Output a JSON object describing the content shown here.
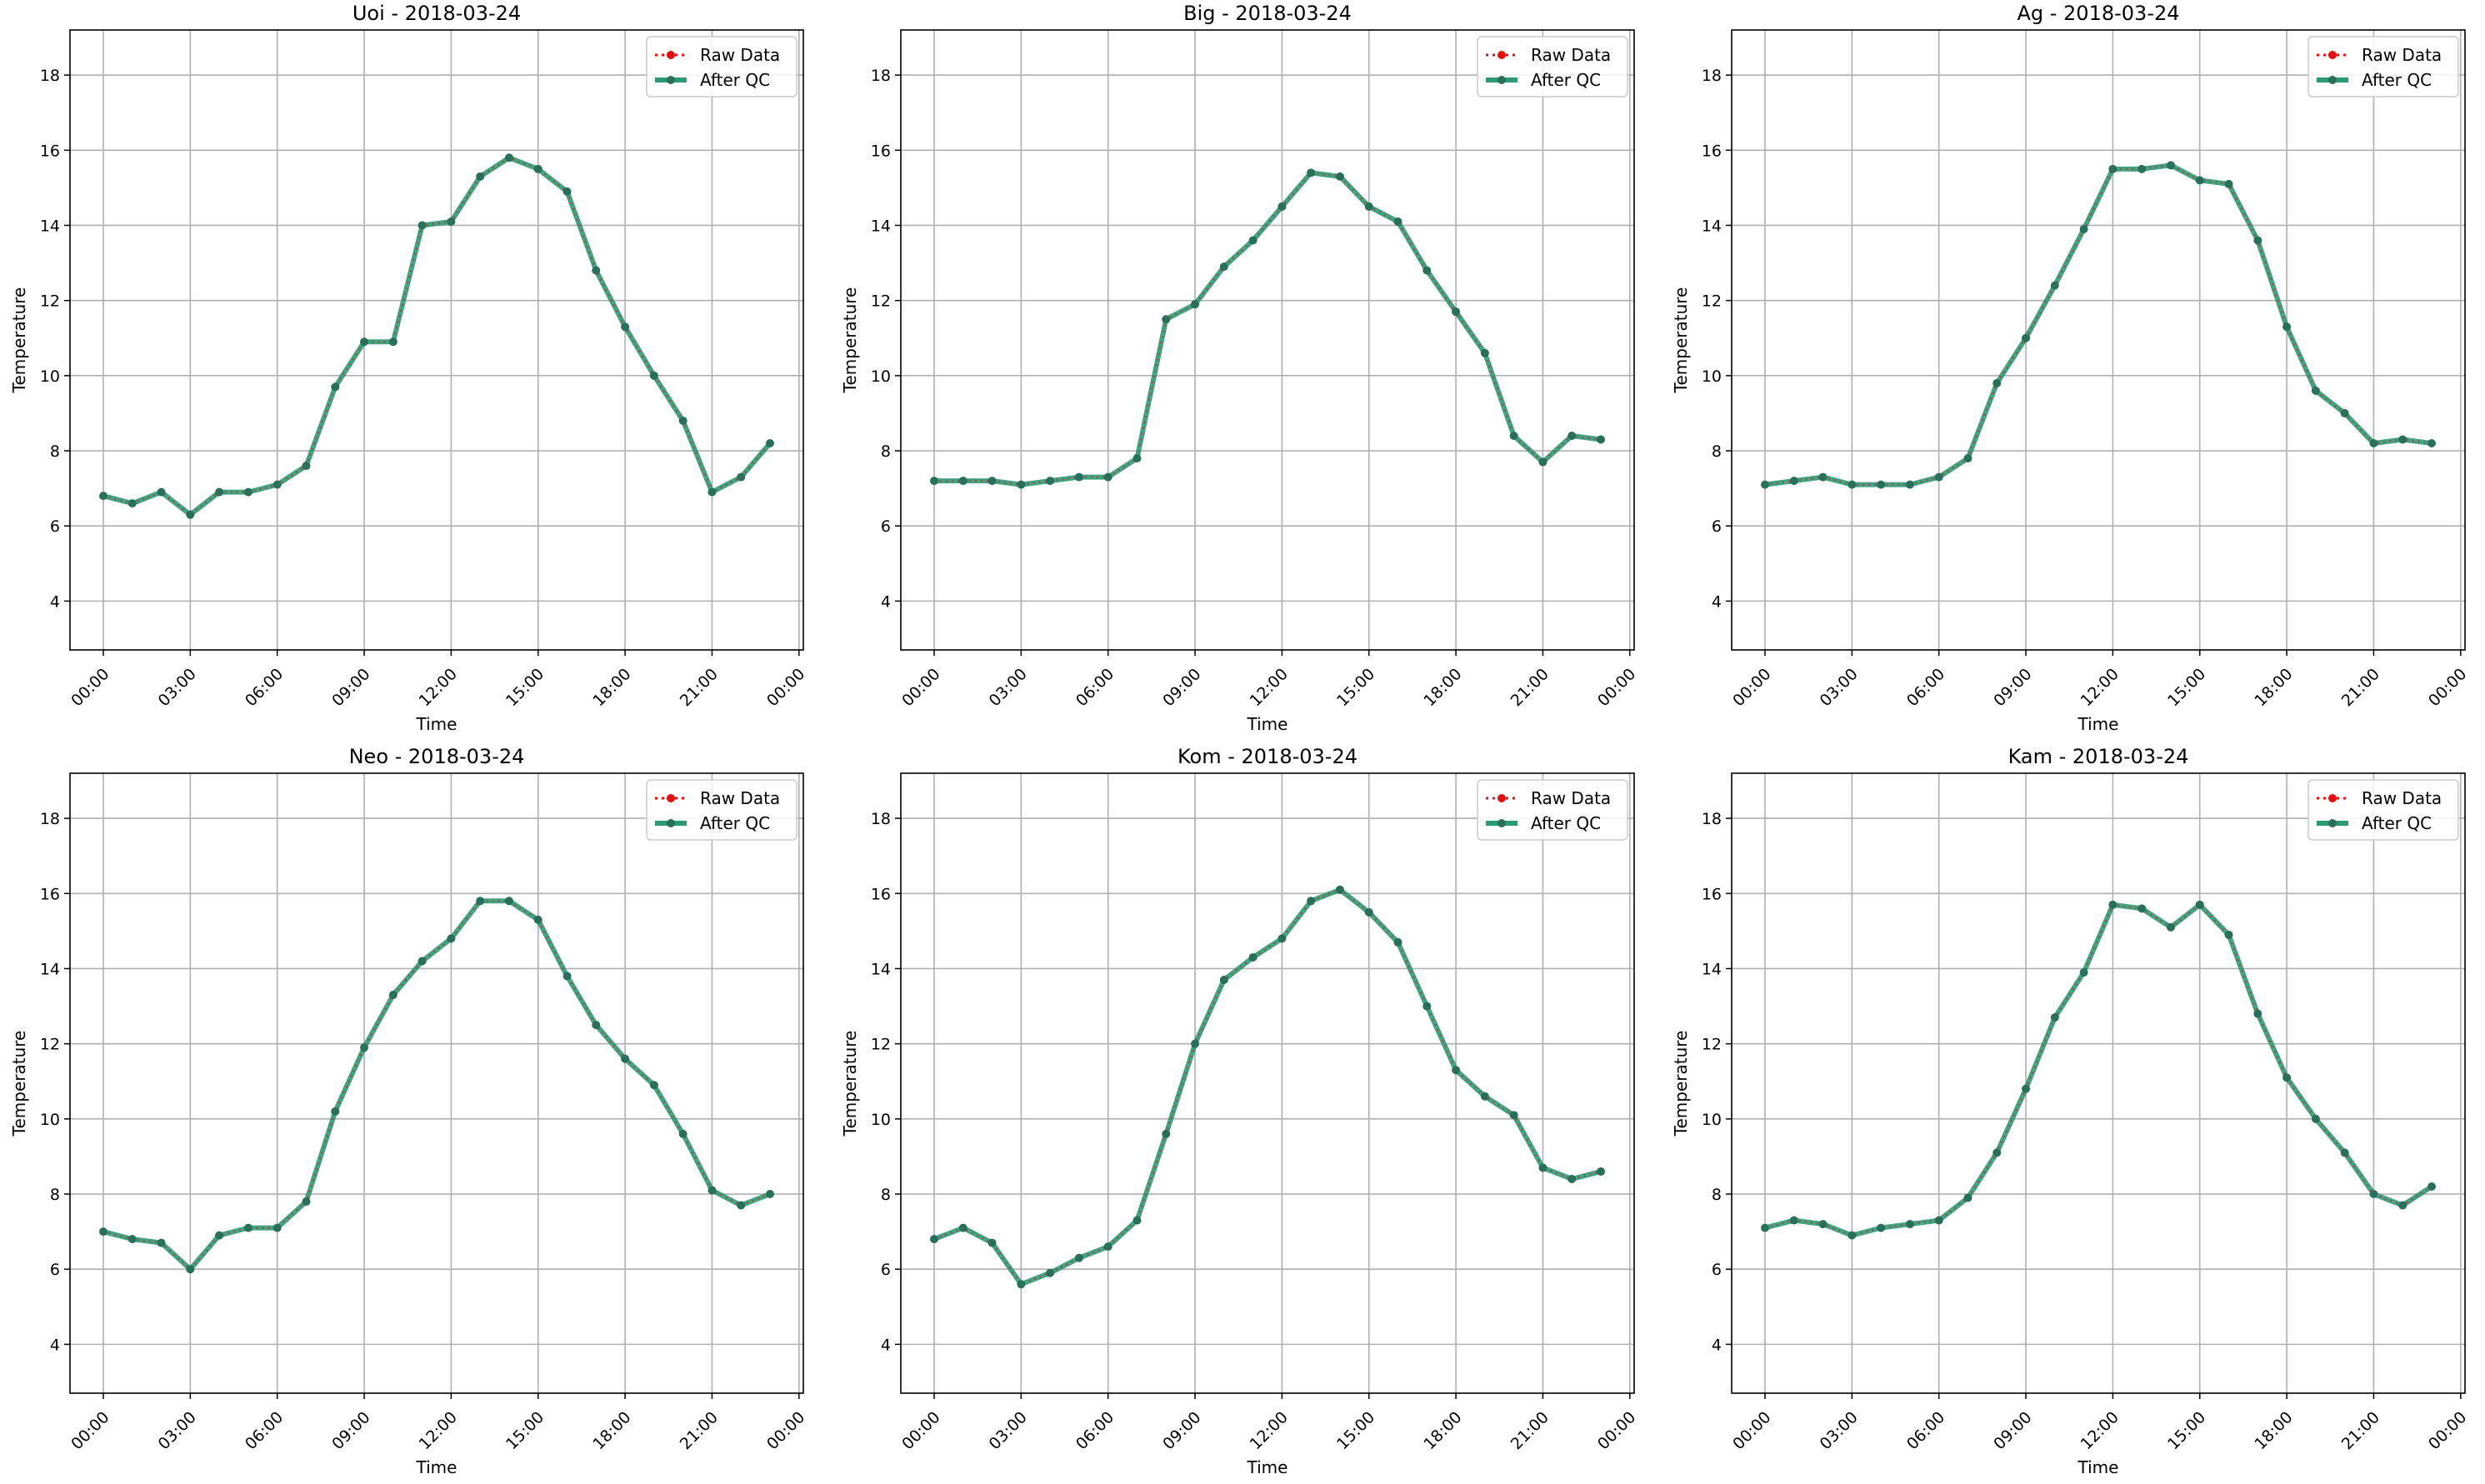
{
  "figure": {
    "colors": {
      "raw": "#e01010",
      "qc": "#2e9a74",
      "qc_marker": "#2a6f5a",
      "grid": "#b0b0b0",
      "axes": "#000000"
    }
  },
  "chart_data": [
    {
      "type": "line",
      "title": "Uoi - 2018-03-24",
      "xlabel": "Time",
      "ylabel": "Temperature",
      "x_ticks": [
        "00:00",
        "03:00",
        "06:00",
        "09:00",
        "12:00",
        "15:00",
        "18:00",
        "21:00",
        "00:00"
      ],
      "y_ticks": [
        4,
        6,
        8,
        10,
        12,
        14,
        16,
        18
      ],
      "xlim_hours": [
        -1.15,
        24.15
      ],
      "ylim": [
        2.7,
        19.2
      ],
      "grid": true,
      "legend": "top-right",
      "x_hours": [
        0,
        1,
        2,
        3,
        4,
        5,
        6,
        7,
        8,
        9,
        10,
        11,
        12,
        13,
        14,
        15,
        16,
        17,
        18,
        19,
        20,
        21,
        22,
        23
      ],
      "series": [
        {
          "name": "Raw Data",
          "values": [
            6.8,
            6.6,
            6.9,
            6.3,
            6.9,
            6.9,
            7.1,
            7.6,
            9.7,
            10.9,
            10.9,
            14.0,
            14.1,
            15.3,
            15.8,
            15.5,
            14.9,
            12.8,
            11.3,
            10.0,
            8.8,
            6.9,
            7.3,
            8.2
          ]
        },
        {
          "name": "After QC",
          "values": [
            6.8,
            6.6,
            6.9,
            6.3,
            6.9,
            6.9,
            7.1,
            7.6,
            9.7,
            10.9,
            10.9,
            14.0,
            14.1,
            15.3,
            15.8,
            15.5,
            14.9,
            12.8,
            11.3,
            10.0,
            8.8,
            6.9,
            7.3,
            8.2
          ]
        }
      ]
    },
    {
      "type": "line",
      "title": "Big - 2018-03-24",
      "xlabel": "Time",
      "ylabel": "Temperature",
      "x_ticks": [
        "00:00",
        "03:00",
        "06:00",
        "09:00",
        "12:00",
        "15:00",
        "18:00",
        "21:00",
        "00:00"
      ],
      "y_ticks": [
        4,
        6,
        8,
        10,
        12,
        14,
        16,
        18
      ],
      "xlim_hours": [
        -1.15,
        24.15
      ],
      "ylim": [
        2.7,
        19.2
      ],
      "grid": true,
      "legend": "top-right",
      "x_hours": [
        0,
        1,
        2,
        3,
        4,
        5,
        6,
        7,
        8,
        9,
        10,
        11,
        12,
        13,
        14,
        15,
        16,
        17,
        18,
        19,
        20,
        21,
        22,
        23
      ],
      "series": [
        {
          "name": "Raw Data",
          "values": [
            7.2,
            7.2,
            7.2,
            7.1,
            7.2,
            7.3,
            7.3,
            7.8,
            11.5,
            11.9,
            12.9,
            13.6,
            14.5,
            15.4,
            15.3,
            14.5,
            14.1,
            12.8,
            11.7,
            10.6,
            8.4,
            7.7,
            8.4,
            8.3
          ]
        },
        {
          "name": "After QC",
          "values": [
            7.2,
            7.2,
            7.2,
            7.1,
            7.2,
            7.3,
            7.3,
            7.8,
            11.5,
            11.9,
            12.9,
            13.6,
            14.5,
            15.4,
            15.3,
            14.5,
            14.1,
            12.8,
            11.7,
            10.6,
            8.4,
            7.7,
            8.4,
            8.3
          ]
        }
      ]
    },
    {
      "type": "line",
      "title": "Ag - 2018-03-24",
      "xlabel": "Time",
      "ylabel": "Temperature",
      "x_ticks": [
        "00:00",
        "03:00",
        "06:00",
        "09:00",
        "12:00",
        "15:00",
        "18:00",
        "21:00",
        "00:00"
      ],
      "y_ticks": [
        4,
        6,
        8,
        10,
        12,
        14,
        16,
        18
      ],
      "xlim_hours": [
        -1.15,
        24.15
      ],
      "ylim": [
        2.7,
        19.2
      ],
      "grid": true,
      "legend": "top-right",
      "x_hours": [
        0,
        1,
        2,
        3,
        4,
        5,
        6,
        7,
        8,
        9,
        10,
        11,
        12,
        13,
        14,
        15,
        16,
        17,
        18,
        19,
        20,
        21,
        22,
        23
      ],
      "series": [
        {
          "name": "Raw Data",
          "values": [
            7.1,
            7.2,
            7.3,
            7.1,
            7.1,
            7.1,
            7.3,
            7.8,
            9.8,
            11.0,
            12.4,
            13.9,
            15.5,
            15.5,
            15.6,
            15.2,
            15.1,
            13.6,
            11.3,
            9.6,
            9.0,
            8.2,
            8.3,
            8.2
          ]
        },
        {
          "name": "After QC",
          "values": [
            7.1,
            7.2,
            7.3,
            7.1,
            7.1,
            7.1,
            7.3,
            7.8,
            9.8,
            11.0,
            12.4,
            13.9,
            15.5,
            15.5,
            15.6,
            15.2,
            15.1,
            13.6,
            11.3,
            9.6,
            9.0,
            8.2,
            8.3,
            8.2
          ]
        }
      ]
    },
    {
      "type": "line",
      "title": "Neo - 2018-03-24",
      "xlabel": "Time",
      "ylabel": "Temperature",
      "x_ticks": [
        "00:00",
        "03:00",
        "06:00",
        "09:00",
        "12:00",
        "15:00",
        "18:00",
        "21:00",
        "00:00"
      ],
      "y_ticks": [
        4,
        6,
        8,
        10,
        12,
        14,
        16,
        18
      ],
      "xlim_hours": [
        -1.15,
        24.15
      ],
      "ylim": [
        2.7,
        19.2
      ],
      "grid": true,
      "legend": "top-right",
      "x_hours": [
        0,
        1,
        2,
        3,
        4,
        5,
        6,
        7,
        8,
        9,
        10,
        11,
        12,
        13,
        14,
        15,
        16,
        17,
        18,
        19,
        20,
        21,
        22,
        23
      ],
      "series": [
        {
          "name": "Raw Data",
          "values": [
            7.0,
            6.8,
            6.7,
            6.0,
            6.9,
            7.1,
            7.1,
            7.8,
            10.2,
            11.9,
            13.3,
            14.2,
            14.8,
            15.8,
            15.8,
            15.3,
            13.8,
            12.5,
            11.6,
            10.9,
            9.6,
            8.1,
            7.7,
            8.0
          ]
        },
        {
          "name": "After QC",
          "values": [
            7.0,
            6.8,
            6.7,
            6.0,
            6.9,
            7.1,
            7.1,
            7.8,
            10.2,
            11.9,
            13.3,
            14.2,
            14.8,
            15.8,
            15.8,
            15.3,
            13.8,
            12.5,
            11.6,
            10.9,
            9.6,
            8.1,
            7.7,
            8.0
          ]
        }
      ]
    },
    {
      "type": "line",
      "title": "Kom - 2018-03-24",
      "xlabel": "Time",
      "ylabel": "Temperature",
      "x_ticks": [
        "00:00",
        "03:00",
        "06:00",
        "09:00",
        "12:00",
        "15:00",
        "18:00",
        "21:00",
        "00:00"
      ],
      "y_ticks": [
        4,
        6,
        8,
        10,
        12,
        14,
        16,
        18
      ],
      "xlim_hours": [
        -1.15,
        24.15
      ],
      "ylim": [
        2.7,
        19.2
      ],
      "grid": true,
      "legend": "top-right",
      "x_hours": [
        0,
        1,
        2,
        3,
        4,
        5,
        6,
        7,
        8,
        9,
        10,
        11,
        12,
        13,
        14,
        15,
        16,
        17,
        18,
        19,
        20,
        21,
        22,
        23
      ],
      "series": [
        {
          "name": "Raw Data",
          "values": [
            6.8,
            7.1,
            6.7,
            5.6,
            5.9,
            6.3,
            6.6,
            7.3,
            9.6,
            12.0,
            13.7,
            14.3,
            14.8,
            15.8,
            16.1,
            15.5,
            14.7,
            13.0,
            11.3,
            10.6,
            10.1,
            8.7,
            8.4,
            8.6
          ]
        },
        {
          "name": "After QC",
          "values": [
            6.8,
            7.1,
            6.7,
            5.6,
            5.9,
            6.3,
            6.6,
            7.3,
            9.6,
            12.0,
            13.7,
            14.3,
            14.8,
            15.8,
            16.1,
            15.5,
            14.7,
            13.0,
            11.3,
            10.6,
            10.1,
            8.7,
            8.4,
            8.6
          ]
        }
      ]
    },
    {
      "type": "line",
      "title": "Kam - 2018-03-24",
      "xlabel": "Time",
      "ylabel": "Temperature",
      "x_ticks": [
        "00:00",
        "03:00",
        "06:00",
        "09:00",
        "12:00",
        "15:00",
        "18:00",
        "21:00",
        "00:00"
      ],
      "y_ticks": [
        4,
        6,
        8,
        10,
        12,
        14,
        16,
        18
      ],
      "xlim_hours": [
        -1.15,
        24.15
      ],
      "ylim": [
        2.7,
        19.2
      ],
      "grid": true,
      "legend": "top-right",
      "x_hours": [
        0,
        1,
        2,
        3,
        4,
        5,
        6,
        7,
        8,
        9,
        10,
        11,
        12,
        13,
        14,
        15,
        16,
        17,
        18,
        19,
        20,
        21,
        22,
        23
      ],
      "series": [
        {
          "name": "Raw Data",
          "values": [
            7.1,
            7.3,
            7.2,
            6.9,
            7.1,
            7.2,
            7.3,
            7.9,
            9.1,
            10.8,
            12.7,
            13.9,
            15.7,
            15.6,
            15.1,
            15.7,
            14.9,
            12.8,
            11.1,
            10.0,
            9.1,
            8.0,
            7.7,
            8.2
          ]
        },
        {
          "name": "After QC",
          "values": [
            7.1,
            7.3,
            7.2,
            6.9,
            7.1,
            7.2,
            7.3,
            7.9,
            9.1,
            10.8,
            12.7,
            13.9,
            15.7,
            15.6,
            15.1,
            15.7,
            14.9,
            12.8,
            11.1,
            10.0,
            9.1,
            8.0,
            7.7,
            8.2
          ]
        }
      ]
    }
  ]
}
